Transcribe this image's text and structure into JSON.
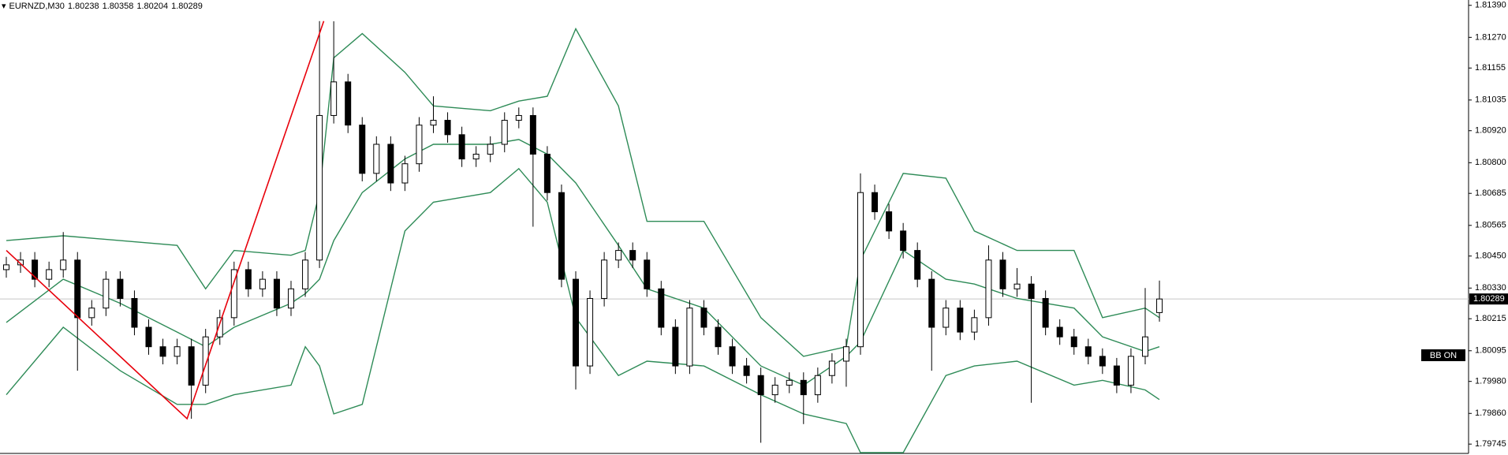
{
  "chart_data": {
    "type": "candlestick",
    "symbol": "EURNZD,M30",
    "open": [
      1.80399,
      1.80417,
      1.80435,
      1.80363,
      1.80399,
      1.80435,
      1.80219,
      1.80255,
      1.80363,
      1.80291,
      1.80183,
      1.8011,
      1.80074,
      1.8011,
      1.79966,
      1.80147,
      1.80219,
      1.80399,
      1.80327,
      1.80363,
      1.80255,
      1.80327,
      1.80435,
      1.80977,
      1.81103,
      1.80941,
      1.8076,
      1.80869,
      1.80724,
      1.80796,
      1.80941,
      1.80959,
      1.80905,
      1.80814,
      1.80832,
      1.80869,
      1.80959,
      1.80977,
      1.80832,
      1.80688,
      1.80363,
      1.80038,
      1.80291,
      1.80435,
      1.80471,
      1.80435,
      1.80327,
      1.80183,
      1.80038,
      1.80255,
      1.80183,
      1.8011,
      1.80038,
      1.80002,
      1.7993,
      1.79966,
      1.79984,
      1.7993,
      1.80002,
      1.80056,
      1.8011,
      1.80688,
      1.80616,
      1.80544,
      1.80471,
      1.80363,
      1.80183,
      1.80255,
      1.80165,
      1.80219,
      1.80435,
      1.80327,
      1.80345,
      1.80291,
      1.80183,
      1.80147,
      1.8011,
      1.80074,
      1.80038,
      1.79966,
      1.80074,
      1.80238
    ],
    "high": [
      1.80447,
      1.80465,
      1.80465,
      1.80429,
      1.8054,
      1.80465,
      1.80285,
      1.80393,
      1.80393,
      1.80321,
      1.80213,
      1.8014,
      1.8014,
      1.8014,
      1.80177,
      1.80249,
      1.80429,
      1.80429,
      1.80393,
      1.80393,
      1.80357,
      1.80465,
      1.81331,
      1.8133,
      1.81133,
      1.80971,
      1.80899,
      1.80899,
      1.80826,
      1.80971,
      1.81049,
      1.80989,
      1.80935,
      1.80862,
      1.80899,
      1.80989,
      1.81007,
      1.81007,
      1.80862,
      1.80718,
      1.80393,
      1.80321,
      1.80465,
      1.80501,
      1.80501,
      1.80465,
      1.80357,
      1.80213,
      1.80285,
      1.80285,
      1.80213,
      1.8014,
      1.80068,
      1.80032,
      1.79996,
      1.80014,
      1.80014,
      1.80032,
      1.80086,
      1.8014,
      1.8076,
      1.80718,
      1.80646,
      1.80574,
      1.80501,
      1.80393,
      1.80285,
      1.80285,
      1.80249,
      1.8049,
      1.80465,
      1.80405,
      1.80375,
      1.80321,
      1.80213,
      1.80177,
      1.8014,
      1.80104,
      1.80068,
      1.80104,
      1.8033,
      1.80358
    ],
    "low": [
      1.80369,
      1.80387,
      1.80333,
      1.80333,
      1.80369,
      1.8002,
      1.80189,
      1.80225,
      1.80261,
      1.80153,
      1.8008,
      1.80044,
      1.80044,
      1.7984,
      1.79936,
      1.80117,
      1.80189,
      1.80297,
      1.80297,
      1.80225,
      1.80225,
      1.80297,
      1.80405,
      1.80947,
      1.80911,
      1.8073,
      1.8073,
      1.80694,
      1.80694,
      1.80766,
      1.80911,
      1.80875,
      1.80784,
      1.80784,
      1.80802,
      1.80839,
      1.80929,
      1.8056,
      1.80658,
      1.80333,
      1.7995,
      1.80008,
      1.80261,
      1.80405,
      1.80405,
      1.80297,
      1.80153,
      1.80008,
      1.80008,
      1.80153,
      1.8008,
      1.80008,
      1.79972,
      1.7975,
      1.799,
      1.79936,
      1.7982,
      1.799,
      1.79972,
      1.7996,
      1.8008,
      1.80586,
      1.80514,
      1.80441,
      1.80333,
      1.8002,
      1.80153,
      1.80135,
      1.80135,
      1.80189,
      1.80297,
      1.80297,
      1.799,
      1.80153,
      1.80117,
      1.8008,
      1.80044,
      1.80008,
      1.79936,
      1.79936,
      1.80044,
      1.80204
    ],
    "close": [
      1.80417,
      1.80435,
      1.80363,
      1.80399,
      1.80435,
      1.80219,
      1.80255,
      1.80363,
      1.80291,
      1.80183,
      1.8011,
      1.80074,
      1.8011,
      1.79966,
      1.80147,
      1.80219,
      1.80399,
      1.80327,
      1.80363,
      1.80255,
      1.80327,
      1.80435,
      1.80977,
      1.81103,
      1.80941,
      1.8076,
      1.80869,
      1.80724,
      1.80796,
      1.80941,
      1.80959,
      1.80905,
      1.80814,
      1.80832,
      1.80869,
      1.80959,
      1.80977,
      1.80832,
      1.80688,
      1.80363,
      1.80038,
      1.80291,
      1.80435,
      1.80471,
      1.80435,
      1.80327,
      1.80183,
      1.80038,
      1.80255,
      1.80183,
      1.8011,
      1.80038,
      1.80002,
      1.7993,
      1.79966,
      1.79984,
      1.7993,
      1.80002,
      1.80056,
      1.8011,
      1.80688,
      1.80616,
      1.80544,
      1.80471,
      1.80363,
      1.80183,
      1.80255,
      1.80165,
      1.80219,
      1.80435,
      1.80327,
      1.80345,
      1.80291,
      1.80183,
      1.80147,
      1.8011,
      1.80074,
      1.80038,
      1.79966,
      1.80074,
      1.80147,
      1.80289
    ],
    "bollinger": {
      "color": "#2e8b57",
      "x": [
        0,
        4,
        8,
        12,
        14,
        16,
        20,
        21,
        22,
        23,
        25,
        28,
        30,
        34,
        36,
        38,
        40,
        43,
        45,
        49,
        53,
        56,
        59,
        60,
        63,
        66,
        68,
        71,
        75,
        77,
        80,
        81
      ],
      "upper": [
        1.80508,
        1.80526,
        1.80508,
        1.8049,
        1.80327,
        1.80471,
        1.80453,
        1.80471,
        1.80688,
        1.81193,
        1.81284,
        1.81139,
        1.81013,
        1.80995,
        1.81031,
        1.81049,
        1.81302,
        1.81013,
        1.8058,
        1.8058,
        1.80219,
        1.80074,
        1.8011,
        1.80435,
        1.8076,
        1.80742,
        1.80544,
        1.80471,
        1.80471,
        1.80219,
        1.80255,
        1.80219
      ],
      "middle": [
        1.80201,
        1.80363,
        1.80273,
        1.80165,
        1.8011,
        1.80183,
        1.80273,
        1.80309,
        1.80363,
        1.80508,
        1.80688,
        1.80814,
        1.80869,
        1.80869,
        1.80887,
        1.80832,
        1.80724,
        1.8049,
        1.80327,
        1.80255,
        1.80038,
        1.79966,
        1.80074,
        1.80128,
        1.80471,
        1.80363,
        1.80345,
        1.80291,
        1.80255,
        1.80147,
        1.80092,
        1.8011
      ],
      "lower": [
        1.7993,
        1.80183,
        1.8002,
        1.79894,
        1.79894,
        1.7993,
        1.79966,
        1.8011,
        1.80038,
        1.79858,
        1.79894,
        1.80544,
        1.80652,
        1.80688,
        1.80778,
        1.80652,
        1.80219,
        1.80002,
        1.80056,
        1.80038,
        1.7993,
        1.79858,
        1.79822,
        1.79713,
        1.79713,
        1.80002,
        1.80038,
        1.80056,
        1.79966,
        1.79984,
        1.79948,
        1.79912
      ]
    },
    "zigzag": {
      "color": "#e8000b",
      "x": [
        0,
        12.7,
        22.3
      ],
      "values": [
        1.80471,
        1.7984,
        1.81331
      ]
    },
    "indicator_label": "BB ON",
    "ylim": [
      1.7971,
      1.8141
    ],
    "yticks": [
      {
        "value": 1.8139,
        "label": "1.81390"
      },
      {
        "value": 1.8127,
        "label": "1.81270"
      },
      {
        "value": 1.81155,
        "label": "1.81155"
      },
      {
        "value": 1.81035,
        "label": "1.81035"
      },
      {
        "value": 1.8092,
        "label": "1.80920"
      },
      {
        "value": 1.808,
        "label": "1.80800"
      },
      {
        "value": 1.80685,
        "label": "1.80685"
      },
      {
        "value": 1.80565,
        "label": "1.80565"
      },
      {
        "value": 1.8045,
        "label": "1.80450"
      },
      {
        "value": 1.8033,
        "label": "1.80330"
      },
      {
        "value": 1.80215,
        "label": "1.80215"
      },
      {
        "value": 1.80095,
        "label": "1.80095"
      },
      {
        "value": 1.7998,
        "label": "1.79980"
      },
      {
        "value": 1.7986,
        "label": "1.79860"
      },
      {
        "value": 1.79745,
        "label": "1.79745"
      }
    ]
  }
}
